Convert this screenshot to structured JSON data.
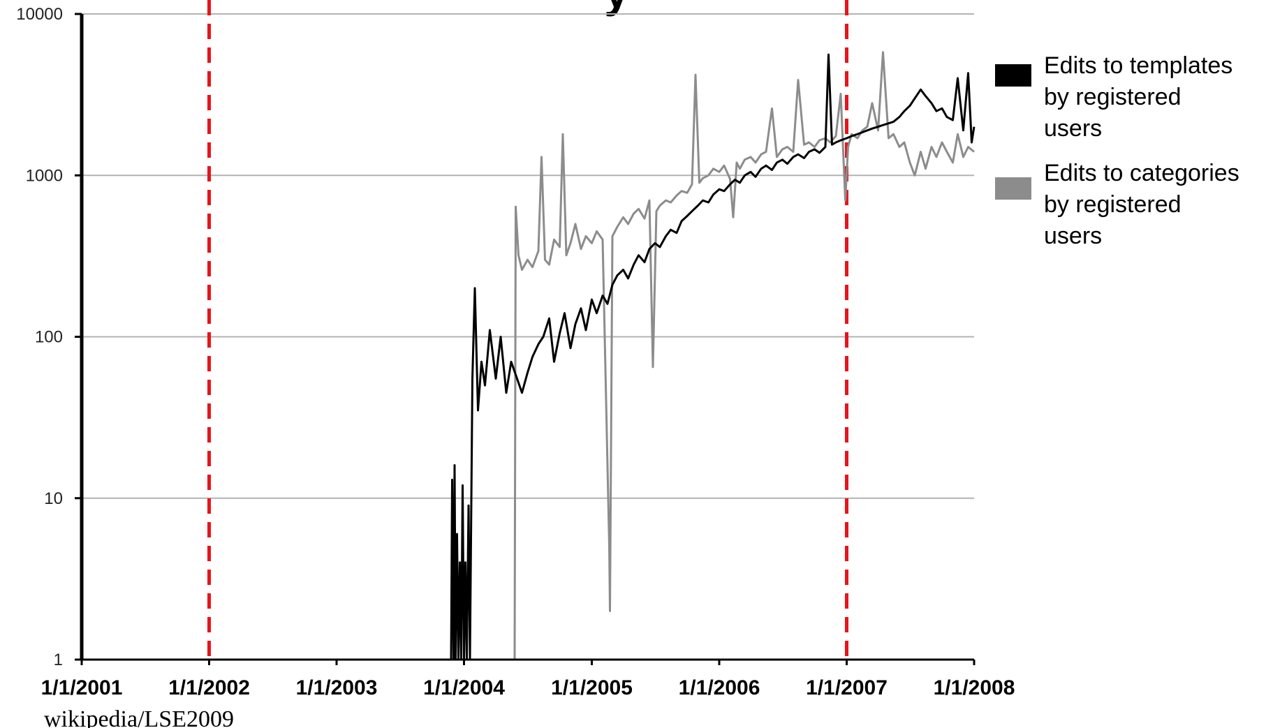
{
  "chart_data": {
    "type": "line",
    "title_fragment": "y",
    "xlabel": "",
    "ylabel": "",
    "y_scale": "log",
    "ylim": [
      1,
      10000
    ],
    "y_ticks": [
      {
        "value": 1,
        "label": "1"
      },
      {
        "value": 10,
        "label": "10"
      },
      {
        "value": 100,
        "label": "100"
      },
      {
        "value": 1000,
        "label": "1000"
      },
      {
        "value": 10000,
        "label": "10000"
      }
    ],
    "xlim": [
      "2001-01-01",
      "2008-01-01"
    ],
    "x_ticks": [
      {
        "value": "2001-01-01",
        "label": "1/1/2001"
      },
      {
        "value": "2002-01-01",
        "label": "1/1/2002"
      },
      {
        "value": "2003-01-01",
        "label": "1/1/2003"
      },
      {
        "value": "2004-01-01",
        "label": "1/1/2004"
      },
      {
        "value": "2005-01-01",
        "label": "1/1/2005"
      },
      {
        "value": "2006-01-01",
        "label": "1/1/2006"
      },
      {
        "value": "2007-01-01",
        "label": "1/1/2007"
      },
      {
        "value": "2008-01-01",
        "label": "1/1/2008"
      }
    ],
    "grid": true,
    "reference_lines": [
      {
        "x": "2002-01-01",
        "color": "#e8141b",
        "style": "dashed"
      },
      {
        "x": "2007-01-01",
        "color": "#e8141b",
        "style": "dashed"
      }
    ],
    "legend_position": "right",
    "series": [
      {
        "name": "Edits to templates by registered users",
        "legend_lines": [
          "Edits to templates",
          "by registered",
          "users"
        ],
        "color": "#000000",
        "points": [
          [
            "2003-11-25",
            1
          ],
          [
            "2003-11-28",
            13
          ],
          [
            "2003-12-02",
            1
          ],
          [
            "2003-12-05",
            16
          ],
          [
            "2003-12-08",
            1
          ],
          [
            "2003-12-12",
            6
          ],
          [
            "2003-12-16",
            1
          ],
          [
            "2003-12-20",
            4
          ],
          [
            "2003-12-24",
            1
          ],
          [
            "2003-12-28",
            12
          ],
          [
            "2004-01-01",
            1
          ],
          [
            "2004-01-05",
            4
          ],
          [
            "2004-01-09",
            1
          ],
          [
            "2004-01-14",
            9
          ],
          [
            "2004-01-18",
            1
          ],
          [
            "2004-01-25",
            55
          ],
          [
            "2004-02-01",
            200
          ],
          [
            "2004-02-10",
            35
          ],
          [
            "2004-02-20",
            70
          ],
          [
            "2004-03-01",
            50
          ],
          [
            "2004-03-15",
            110
          ],
          [
            "2004-04-01",
            55
          ],
          [
            "2004-04-15",
            100
          ],
          [
            "2004-05-01",
            45
          ],
          [
            "2004-05-15",
            70
          ],
          [
            "2004-06-01",
            55
          ],
          [
            "2004-06-15",
            45
          ],
          [
            "2004-07-01",
            60
          ],
          [
            "2004-07-15",
            75
          ],
          [
            "2004-08-01",
            90
          ],
          [
            "2004-08-15",
            100
          ],
          [
            "2004-09-01",
            130
          ],
          [
            "2004-09-15",
            70
          ],
          [
            "2004-10-01",
            105
          ],
          [
            "2004-10-15",
            140
          ],
          [
            "2004-11-01",
            85
          ],
          [
            "2004-11-15",
            120
          ],
          [
            "2004-12-01",
            150
          ],
          [
            "2004-12-15",
            110
          ],
          [
            "2005-01-01",
            170
          ],
          [
            "2005-01-15",
            140
          ],
          [
            "2005-02-01",
            180
          ],
          [
            "2005-02-15",
            160
          ],
          [
            "2005-03-01",
            210
          ],
          [
            "2005-03-15",
            240
          ],
          [
            "2005-04-01",
            260
          ],
          [
            "2005-04-15",
            230
          ],
          [
            "2005-05-01",
            280
          ],
          [
            "2005-05-15",
            320
          ],
          [
            "2005-06-01",
            290
          ],
          [
            "2005-06-15",
            350
          ],
          [
            "2005-07-01",
            380
          ],
          [
            "2005-07-15",
            360
          ],
          [
            "2005-08-01",
            420
          ],
          [
            "2005-08-15",
            460
          ],
          [
            "2005-09-01",
            440
          ],
          [
            "2005-09-15",
            520
          ],
          [
            "2005-10-01",
            560
          ],
          [
            "2005-10-15",
            600
          ],
          [
            "2005-11-01",
            650
          ],
          [
            "2005-11-15",
            700
          ],
          [
            "2005-12-01",
            680
          ],
          [
            "2005-12-15",
            760
          ],
          [
            "2006-01-01",
            820
          ],
          [
            "2006-01-15",
            800
          ],
          [
            "2006-02-01",
            880
          ],
          [
            "2006-02-15",
            940
          ],
          [
            "2006-03-01",
            900
          ],
          [
            "2006-03-15",
            1000
          ],
          [
            "2006-04-01",
            1050
          ],
          [
            "2006-04-15",
            980
          ],
          [
            "2006-05-01",
            1100
          ],
          [
            "2006-05-15",
            1150
          ],
          [
            "2006-06-01",
            1080
          ],
          [
            "2006-06-15",
            1200
          ],
          [
            "2006-07-01",
            1250
          ],
          [
            "2006-07-15",
            1180
          ],
          [
            "2006-08-01",
            1300
          ],
          [
            "2006-08-15",
            1350
          ],
          [
            "2006-09-01",
            1280
          ],
          [
            "2006-09-15",
            1400
          ],
          [
            "2006-10-01",
            1450
          ],
          [
            "2006-10-15",
            1380
          ],
          [
            "2006-11-01",
            1500
          ],
          [
            "2006-11-10",
            5600
          ],
          [
            "2006-11-20",
            1550
          ],
          [
            "2006-12-01",
            1600
          ],
          [
            "2006-12-15",
            1650
          ],
          [
            "2007-01-01",
            1700
          ],
          [
            "2007-01-15",
            1750
          ],
          [
            "2007-02-01",
            1800
          ],
          [
            "2007-02-15",
            1850
          ],
          [
            "2007-03-01",
            1900
          ],
          [
            "2007-03-15",
            1950
          ],
          [
            "2007-04-01",
            2000
          ],
          [
            "2007-04-15",
            2050
          ],
          [
            "2007-05-01",
            2100
          ],
          [
            "2007-05-15",
            2150
          ],
          [
            "2007-06-01",
            2300
          ],
          [
            "2007-06-15",
            2500
          ],
          [
            "2007-07-01",
            2700
          ],
          [
            "2007-07-15",
            3000
          ],
          [
            "2007-08-01",
            3400
          ],
          [
            "2007-08-15",
            3100
          ],
          [
            "2007-09-01",
            2800
          ],
          [
            "2007-09-15",
            2500
          ],
          [
            "2007-10-01",
            2600
          ],
          [
            "2007-10-15",
            2300
          ],
          [
            "2007-11-01",
            2200
          ],
          [
            "2007-11-15",
            4000
          ],
          [
            "2007-12-01",
            1900
          ],
          [
            "2007-12-15",
            4300
          ],
          [
            "2007-12-25",
            1600
          ],
          [
            "2008-01-01",
            2000
          ]
        ]
      },
      {
        "name": "Edits to categories by registered users",
        "legend_lines": [
          "Edits to categories",
          "by registered",
          "users"
        ],
        "color": "#8c8c8c",
        "points": [
          [
            "2004-05-25",
            1
          ],
          [
            "2004-05-28",
            640
          ],
          [
            "2004-06-05",
            320
          ],
          [
            "2004-06-15",
            260
          ],
          [
            "2004-07-01",
            300
          ],
          [
            "2004-07-15",
            270
          ],
          [
            "2004-08-01",
            340
          ],
          [
            "2004-08-10",
            1300
          ],
          [
            "2004-08-20",
            300
          ],
          [
            "2004-09-01",
            280
          ],
          [
            "2004-09-15",
            400
          ],
          [
            "2004-10-01",
            360
          ],
          [
            "2004-10-10",
            1800
          ],
          [
            "2004-10-20",
            320
          ],
          [
            "2004-11-01",
            380
          ],
          [
            "2004-11-15",
            500
          ],
          [
            "2004-12-01",
            350
          ],
          [
            "2004-12-15",
            420
          ],
          [
            "2005-01-01",
            380
          ],
          [
            "2005-01-15",
            450
          ],
          [
            "2005-02-01",
            400
          ],
          [
            "2005-02-20",
            5
          ],
          [
            "2005-02-22",
            2
          ],
          [
            "2005-03-01",
            420
          ],
          [
            "2005-03-15",
            480
          ],
          [
            "2005-04-01",
            550
          ],
          [
            "2005-04-15",
            500
          ],
          [
            "2005-05-01",
            580
          ],
          [
            "2005-05-15",
            620
          ],
          [
            "2005-06-01",
            540
          ],
          [
            "2005-06-15",
            700
          ],
          [
            "2005-06-25",
            65
          ],
          [
            "2005-07-05",
            600
          ],
          [
            "2005-07-15",
            650
          ],
          [
            "2005-08-01",
            700
          ],
          [
            "2005-08-15",
            680
          ],
          [
            "2005-09-01",
            750
          ],
          [
            "2005-09-15",
            800
          ],
          [
            "2005-10-01",
            780
          ],
          [
            "2005-10-15",
            880
          ],
          [
            "2005-10-25",
            4200
          ],
          [
            "2005-11-05",
            900
          ],
          [
            "2005-11-15",
            960
          ],
          [
            "2005-12-01",
            1000
          ],
          [
            "2005-12-15",
            1100
          ],
          [
            "2006-01-01",
            1050
          ],
          [
            "2006-01-15",
            1150
          ],
          [
            "2006-02-01",
            950
          ],
          [
            "2006-02-10",
            550
          ],
          [
            "2006-02-20",
            1200
          ],
          [
            "2006-03-01",
            1100
          ],
          [
            "2006-03-15",
            1250
          ],
          [
            "2006-04-01",
            1300
          ],
          [
            "2006-04-15",
            1200
          ],
          [
            "2006-05-01",
            1350
          ],
          [
            "2006-05-15",
            1400
          ],
          [
            "2006-06-01",
            2600
          ],
          [
            "2006-06-15",
            1300
          ],
          [
            "2006-07-01",
            1450
          ],
          [
            "2006-07-15",
            1500
          ],
          [
            "2006-08-01",
            1400
          ],
          [
            "2006-08-15",
            3900
          ],
          [
            "2006-09-01",
            1550
          ],
          [
            "2006-09-15",
            1600
          ],
          [
            "2006-10-01",
            1500
          ],
          [
            "2006-10-15",
            1650
          ],
          [
            "2006-11-01",
            1700
          ],
          [
            "2006-11-15",
            1600
          ],
          [
            "2006-12-01",
            1750
          ],
          [
            "2006-12-15",
            3200
          ],
          [
            "2006-12-28",
            700
          ],
          [
            "2007-01-05",
            1500
          ],
          [
            "2007-01-15",
            1800
          ],
          [
            "2007-02-01",
            1700
          ],
          [
            "2007-02-15",
            1900
          ],
          [
            "2007-03-01",
            2000
          ],
          [
            "2007-03-15",
            2800
          ],
          [
            "2007-04-01",
            1900
          ],
          [
            "2007-04-15",
            5800
          ],
          [
            "2007-05-01",
            1700
          ],
          [
            "2007-05-15",
            1800
          ],
          [
            "2007-06-01",
            1500
          ],
          [
            "2007-06-15",
            1600
          ],
          [
            "2007-07-01",
            1200
          ],
          [
            "2007-07-15",
            1000
          ],
          [
            "2007-08-01",
            1400
          ],
          [
            "2007-08-15",
            1100
          ],
          [
            "2007-09-01",
            1500
          ],
          [
            "2007-09-15",
            1300
          ],
          [
            "2007-10-01",
            1600
          ],
          [
            "2007-10-15",
            1400
          ],
          [
            "2007-11-01",
            1200
          ],
          [
            "2007-11-15",
            1800
          ],
          [
            "2007-12-01",
            1300
          ],
          [
            "2007-12-15",
            1500
          ],
          [
            "2008-01-01",
            1400
          ]
        ]
      }
    ],
    "source_note": "wikipedia/LSE2009"
  }
}
